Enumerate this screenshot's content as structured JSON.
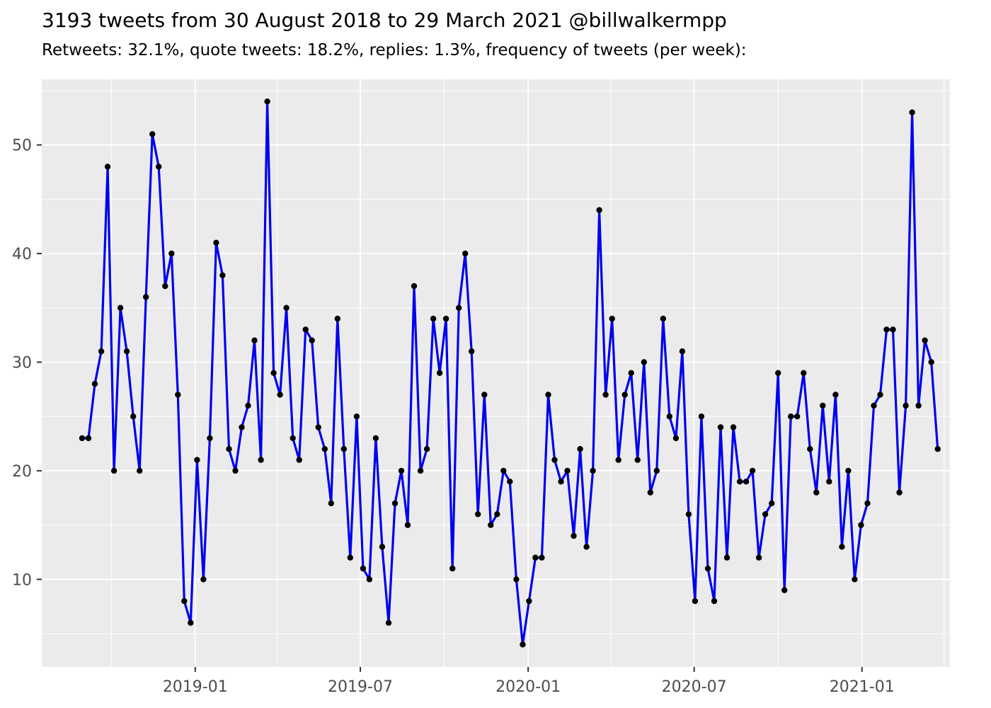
{
  "header": {
    "title": "3193 tweets from 30 August 2018 to 29 March 2021 @billwalkermpp",
    "subtitle": "Retweets: 32.1%, quote tweets: 18.2%, replies: 1.3%, frequency of tweets (per week):"
  },
  "chart_data": {
    "type": "line",
    "title": "3193 tweets from 30 August 2018 to 29 March 2021 @billwalkermpp",
    "subtitle": "Retweets: 32.1%, quote tweets: 18.2%, replies: 1.3%, frequency of tweets (per week):",
    "xlabel": "",
    "ylabel": "",
    "legend_position": "none",
    "grid": "on",
    "x_start": "2018-08-30",
    "x_interval_days": 7,
    "x_tick_dates": [
      "2019-01-01",
      "2019-07-01",
      "2020-01-01",
      "2020-07-01",
      "2021-01-01"
    ],
    "x_tick_labels": [
      "2019-01",
      "2019-07",
      "2020-01",
      "2020-07",
      "2021-01"
    ],
    "x_minor_dates": [
      "2018-10-01",
      "2019-04-01",
      "2019-10-01",
      "2020-04-01",
      "2020-10-01",
      "2021-04-01"
    ],
    "y_ticks": [
      10,
      20,
      30,
      40,
      50
    ],
    "y_tick_labels": [
      "10",
      "20",
      "30",
      "40",
      "50"
    ],
    "y_minor_ticks": [
      5,
      15,
      25,
      35,
      45,
      55
    ],
    "ylim": [
      2,
      56.2
    ],
    "series": [
      {
        "name": "tweets per week",
        "values": [
          23,
          23,
          28,
          31,
          48,
          20,
          35,
          31,
          25,
          20,
          36,
          51,
          48,
          37,
          40,
          27,
          8,
          6,
          21,
          10,
          23,
          41,
          38,
          22,
          20,
          24,
          26,
          32,
          21,
          54,
          29,
          27,
          35,
          23,
          21,
          33,
          32,
          24,
          22,
          17,
          34,
          22,
          12,
          25,
          11,
          10,
          23,
          13,
          6,
          17,
          20,
          15,
          37,
          20,
          22,
          34,
          29,
          34,
          11,
          35,
          40,
          31,
          16,
          27,
          15,
          16,
          20,
          19,
          10,
          4,
          8,
          12,
          12,
          27,
          21,
          19,
          20,
          14,
          22,
          13,
          20,
          44,
          27,
          34,
          21,
          27,
          29,
          21,
          30,
          18,
          20,
          34,
          25,
          23,
          31,
          16,
          8,
          25,
          11,
          8,
          24,
          12,
          24,
          19,
          19,
          20,
          12,
          16,
          17,
          29,
          9,
          25,
          25,
          29,
          22,
          18,
          26,
          19,
          27,
          13,
          20,
          10,
          15,
          17,
          26,
          27,
          33,
          33,
          18,
          26,
          53,
          26,
          32,
          30,
          22
        ]
      }
    ]
  },
  "style": {
    "line_color": "#0000F0",
    "point_color": "#000000",
    "panel_bg": "#EBEBEB",
    "grid_color": "#FFFFFF",
    "axis_text_color": "#4D4D4D",
    "tick_color": "#333333",
    "title_color": "#000000"
  }
}
